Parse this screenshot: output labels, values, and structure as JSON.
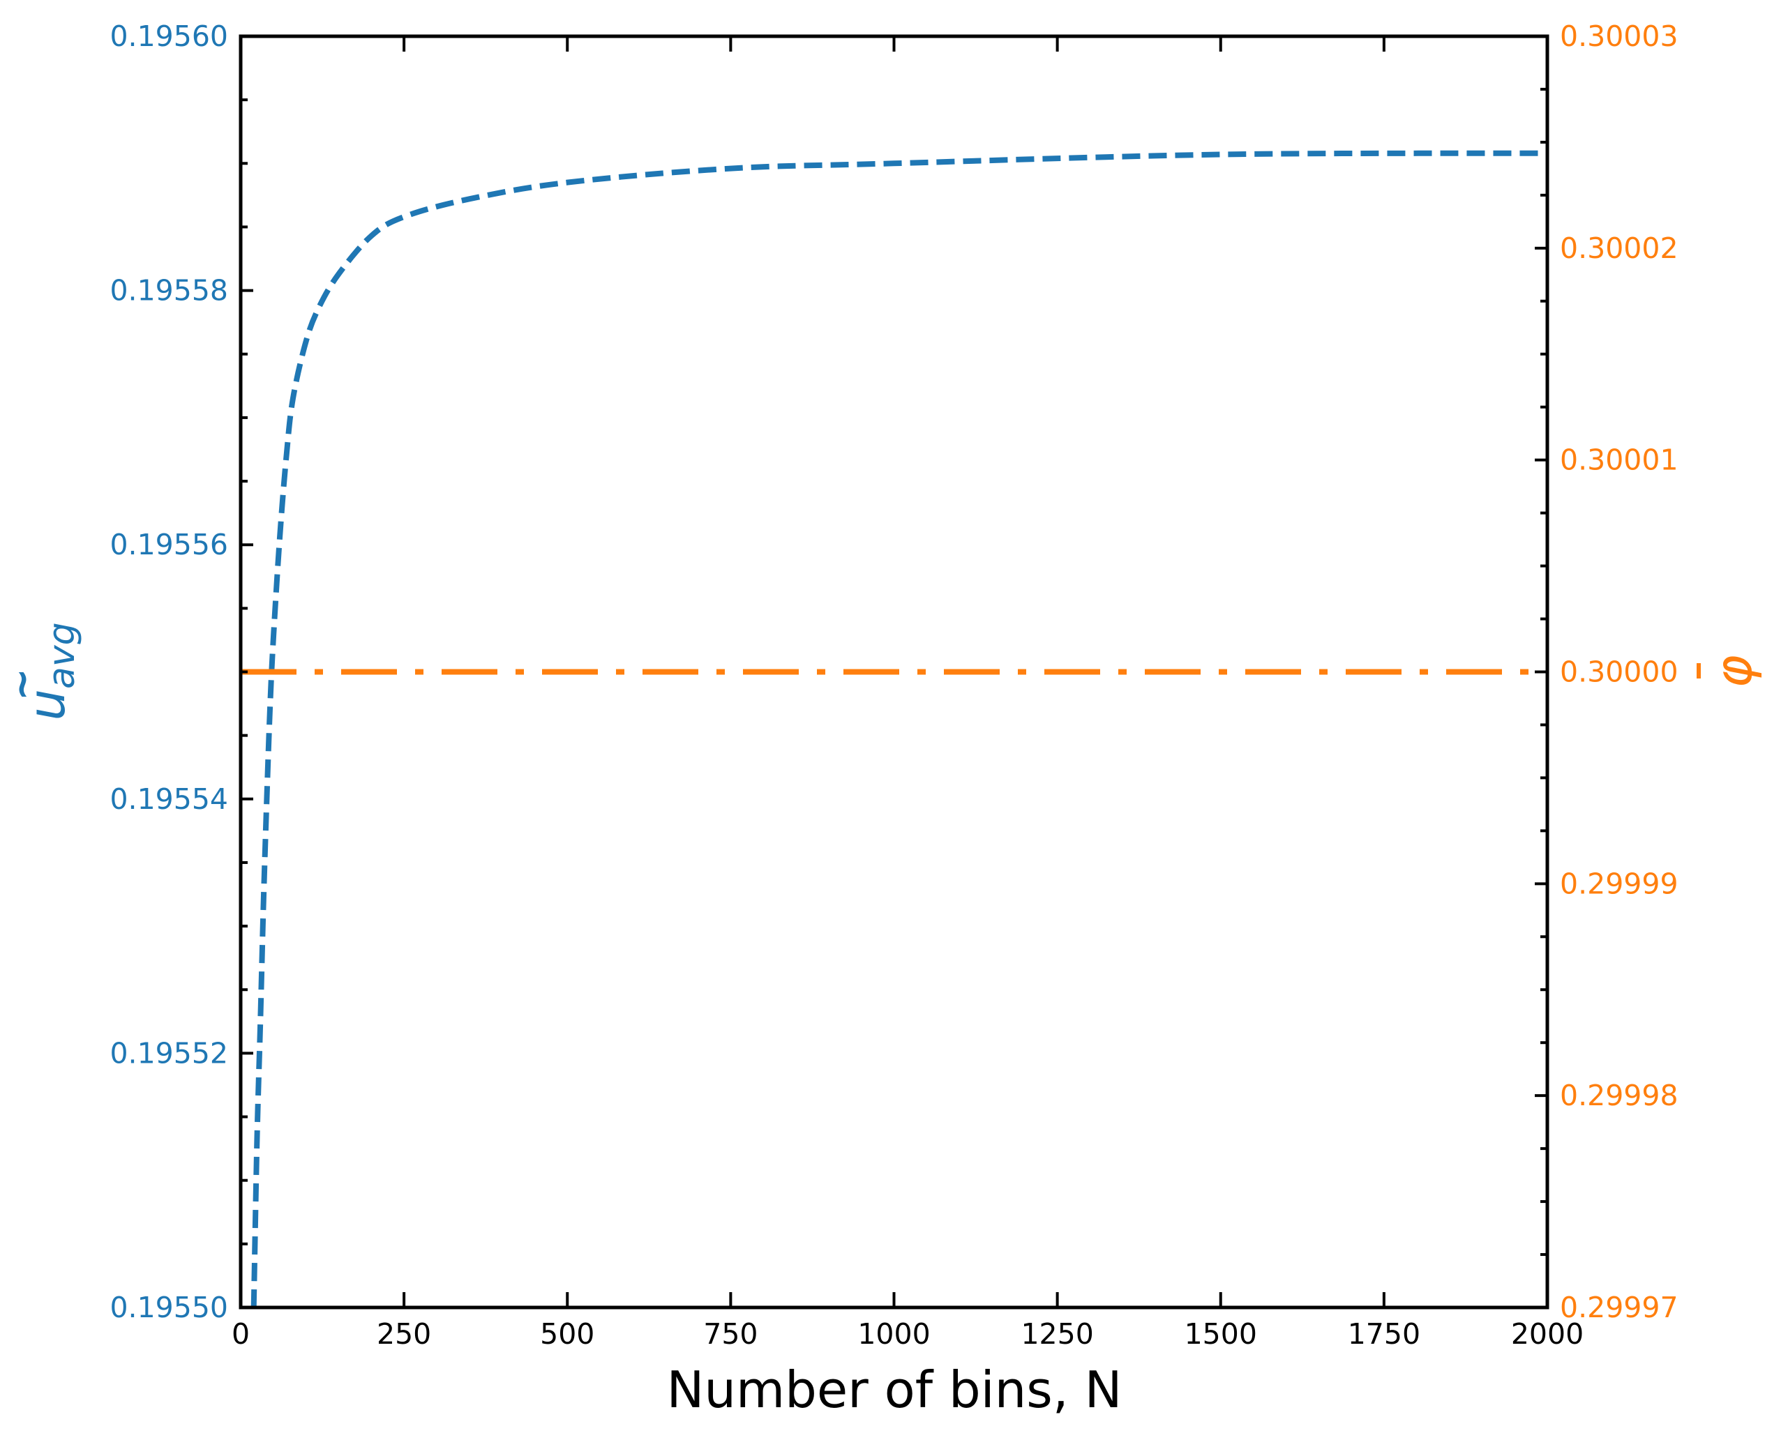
{
  "colors": {
    "left_axis": "#1f77b4",
    "right_axis": "#ff7f0e",
    "spine": "#000000",
    "background": "#ffffff"
  },
  "chart_data": {
    "type": "line",
    "title": "",
    "xlabel": "Number of bins, N",
    "ylabel_left": "ũ_avg",
    "ylabel_right": "φ̄",
    "xlim": [
      0,
      2000
    ],
    "ylim_left": [
      0.1955,
      0.1956
    ],
    "ylim_right": [
      0.29997,
      0.30003
    ],
    "grid": false,
    "legend": null,
    "x_ticks": [
      "0",
      "250",
      "500",
      "750",
      "1000",
      "1250",
      "1500",
      "1750",
      "2000"
    ],
    "y_left_ticks": [
      "0.19550",
      "0.19552",
      "0.19554",
      "0.19556",
      "0.19558",
      "0.19560"
    ],
    "y_right_ticks": [
      "0.29997",
      "0.29998",
      "0.29999",
      "0.30000",
      "0.30001",
      "0.30002",
      "0.30003"
    ],
    "series": [
      {
        "name": "u_avg",
        "axis": "left",
        "color": "#1f77b4",
        "linestyle": "dashed",
        "x": [
          20,
          25,
          30,
          35,
          40,
          45,
          50,
          60,
          70,
          80,
          100,
          120,
          150,
          200,
          250,
          350,
          500,
          750,
          1000,
          1500,
          2000
        ],
        "values": [
          0.1955,
          0.1955132,
          0.1955222,
          0.195532,
          0.1955401,
          0.1955473,
          0.1955526,
          0.1955607,
          0.195567,
          0.1955715,
          0.195576,
          0.1955787,
          0.1955813,
          0.1955843,
          0.1955858,
          0.1955872,
          0.1955885,
          0.1955896,
          0.19559,
          0.1955907,
          0.1955908
        ]
      },
      {
        "name": "phi",
        "axis": "right",
        "color": "#ff7f0e",
        "linestyle": "dashdot",
        "x": [
          0,
          2000
        ],
        "values": [
          0.3,
          0.3
        ]
      }
    ]
  },
  "labels": {
    "xlabel": "Number of bins, N",
    "ylabel_left_base": "u",
    "ylabel_left_accent": "~",
    "ylabel_left_sub": "avg",
    "ylabel_right": "φ"
  }
}
